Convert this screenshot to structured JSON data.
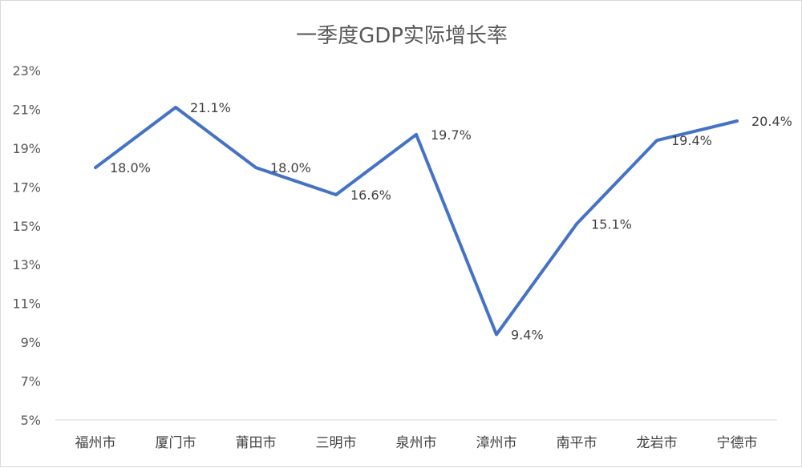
{
  "chart_data": {
    "type": "line",
    "title": "一季度GDP实际增长率",
    "xlabel": "",
    "ylabel": "",
    "categories": [
      "福州市",
      "厦门市",
      "莆田市",
      "三明市",
      "泉州市",
      "漳州市",
      "南平市",
      "龙岩市",
      "宁德市"
    ],
    "series": [
      {
        "values": [
          18.0,
          21.1,
          18.0,
          16.6,
          19.7,
          9.4,
          15.1,
          19.4,
          20.4
        ],
        "labels": [
          "18.0%",
          "21.1%",
          "18.0%",
          "16.6%",
          "19.7%",
          "9.4%",
          "15.1%",
          "19.4%",
          "20.4%"
        ],
        "color": "#4472C4"
      }
    ],
    "ylim": [
      5,
      23
    ],
    "yticks": [
      5,
      7,
      9,
      11,
      13,
      15,
      17,
      19,
      21,
      23
    ],
    "ytick_labels": [
      "5%",
      "7%",
      "9%",
      "11%",
      "13%",
      "15%",
      "17%",
      "19%",
      "21%",
      "23%"
    ],
    "grid": false,
    "legend": "none"
  }
}
